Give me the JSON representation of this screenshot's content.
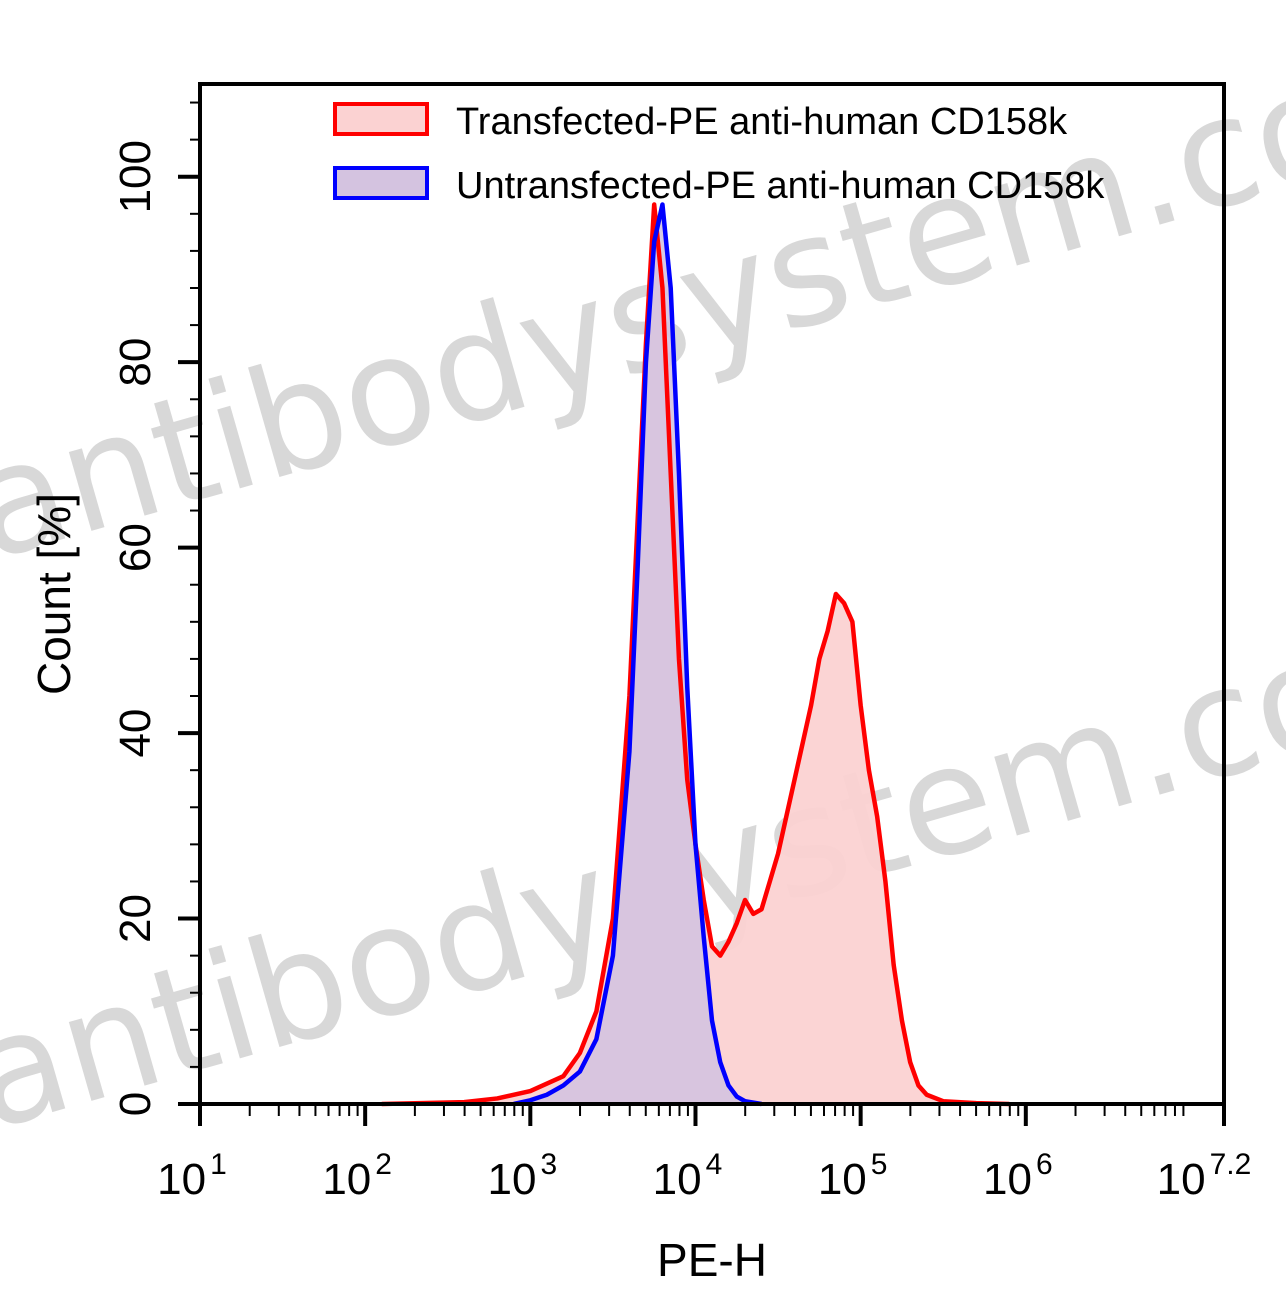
{
  "chart_data": {
    "type": "area",
    "xlabel": "PE-H",
    "ylabel": "Count [%]",
    "x_scale": "log10",
    "xlim": [
      10,
      15848931.92
    ],
    "ylim": [
      0,
      100
    ],
    "x_ticks": [
      {
        "value": 10,
        "base": "10",
        "exp": "1"
      },
      {
        "value": 100,
        "base": "10",
        "exp": "2"
      },
      {
        "value": 1000,
        "base": "10",
        "exp": "3"
      },
      {
        "value": 10000,
        "base": "10",
        "exp": "4"
      },
      {
        "value": 100000,
        "base": "10",
        "exp": "5"
      },
      {
        "value": 1000000,
        "base": "10",
        "exp": "6"
      },
      {
        "value": 15848931.92,
        "base": "10",
        "exp": "7.2"
      }
    ],
    "y_ticks": [
      0,
      20,
      40,
      60,
      80,
      100
    ],
    "legend_position": "top-right",
    "series": [
      {
        "name": "Transfected-PE anti-human  CD158k",
        "color": "#ff0000",
        "fill": "#fbd2d2",
        "x": [
          126,
          398,
          631,
          1000,
          1585,
          1995,
          2512,
          3162,
          3981,
          5012,
          5623,
          6310,
          7079,
          7943,
          8913,
          10000,
          11220,
          12589,
          14125,
          15849,
          17783,
          19953,
          22387,
          25119,
          28184,
          31623,
          35481,
          39811,
          44668,
          50119,
          56234,
          63096,
          70795,
          79433,
          89125,
          100000,
          112202,
          125893,
          141254,
          158489,
          177828,
          199526,
          223872,
          251189,
          316228,
          501187,
          794328
        ],
        "y": [
          0,
          0.2,
          0.6,
          1.4,
          3,
          5.5,
          10,
          20,
          44,
          82,
          97,
          88,
          68,
          48,
          35,
          28,
          22,
          17,
          16,
          17.5,
          19.5,
          22,
          20.5,
          21,
          24,
          27,
          31,
          35,
          39,
          43,
          48,
          51,
          55,
          54,
          52,
          43,
          36,
          31,
          24,
          15,
          9,
          4.5,
          2,
          1,
          0.3,
          0.1,
          0
        ]
      },
      {
        "name": "Untransfected-PE anti-human  CD158k",
        "color": "#0000ff",
        "fill": "#d4c3e0",
        "x": [
          794,
          1000,
          1259,
          1585,
          1995,
          2512,
          3162,
          3981,
          4467,
          5012,
          5623,
          6310,
          7079,
          7943,
          8913,
          10000,
          11220,
          12589,
          14125,
          15849,
          17783,
          19953,
          25119
        ],
        "y": [
          0,
          0.4,
          1,
          2,
          3.5,
          7,
          16,
          38,
          58,
          80,
          93,
          97,
          88,
          68,
          45,
          28,
          18,
          9,
          4.5,
          2,
          0.8,
          0.3,
          0
        ]
      }
    ]
  },
  "watermark": "antibodysystem.com"
}
